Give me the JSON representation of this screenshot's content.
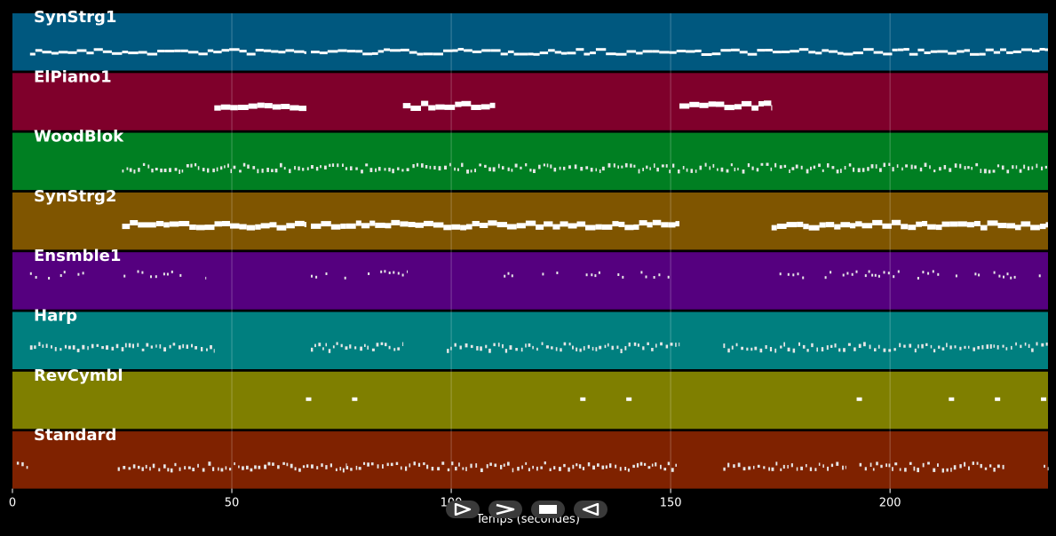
{
  "chart_data": {
    "type": "piano-roll",
    "xlabel": "Temps (secondes)",
    "xlim": [
      0,
      236
    ],
    "xticks": [
      0,
      50,
      100,
      150,
      200
    ],
    "tracks": [
      {
        "name": "SynStrg1",
        "color": "#00587f",
        "density": "sustained",
        "segments": [
          [
            4,
            67
          ],
          [
            68,
            236
          ]
        ]
      },
      {
        "name": "ElPiano1",
        "color": "#7f002b",
        "density": "sustained",
        "segments": [
          [
            46,
            67
          ],
          [
            89,
            110
          ],
          [
            152,
            173
          ]
        ]
      },
      {
        "name": "WoodBlok",
        "color": "#007f22",
        "density": "dense",
        "segments": [
          [
            25,
            68
          ],
          [
            68,
            236
          ]
        ]
      },
      {
        "name": "SynStrg2",
        "color": "#7f5500",
        "density": "sustained",
        "segments": [
          [
            25,
            67
          ],
          [
            68,
            152
          ],
          [
            173,
            236
          ]
        ]
      },
      {
        "name": "Ensmble1",
        "color": "#55007f",
        "density": "sparse",
        "segments": [
          [
            4,
            44
          ],
          [
            68,
            90
          ],
          [
            110,
            150
          ],
          [
            173,
            236
          ]
        ]
      },
      {
        "name": "Harp",
        "color": "#007f7f",
        "density": "dense",
        "segments": [
          [
            4,
            46
          ],
          [
            68,
            89
          ],
          [
            99,
            152
          ],
          [
            162,
            236
          ]
        ]
      },
      {
        "name": "RevCymbl",
        "color": "#7f7f00",
        "density": "points",
        "points": [
          67.5,
          78,
          130,
          140.5,
          193,
          214,
          224.5,
          235
        ]
      },
      {
        "name": "Standard",
        "color": "#7f2200",
        "density": "dense",
        "segments": [
          [
            1,
            4
          ],
          [
            24,
            68
          ],
          [
            68,
            76
          ],
          [
            76,
            152
          ],
          [
            162,
            190
          ],
          [
            193,
            226
          ],
          [
            235,
            236
          ]
        ]
      }
    ]
  },
  "controls": [
    {
      "name": "play",
      "icon": "play-icon"
    },
    {
      "name": "fast-forward",
      "icon": "chevron-right-icon"
    },
    {
      "name": "stop",
      "icon": "stop-icon"
    },
    {
      "name": "rewind",
      "icon": "rewind-icon"
    }
  ]
}
